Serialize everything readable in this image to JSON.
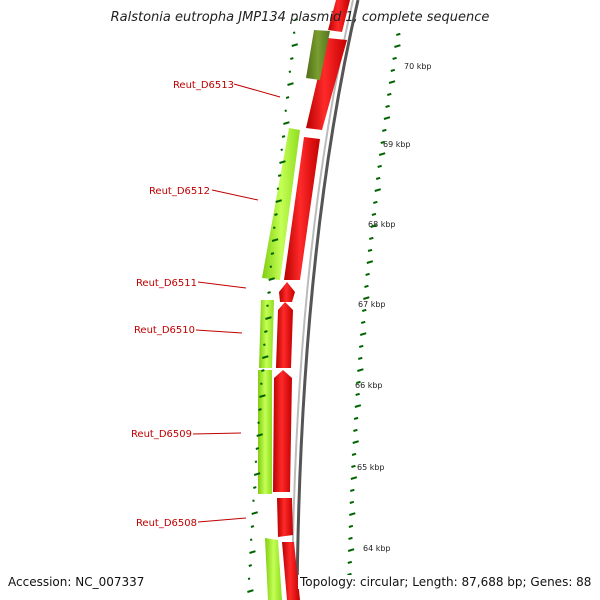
{
  "title": "Ralstonia eutropha JMP134 plasmid 1, complete sequence",
  "accession": "Accession: NC_007337",
  "summary": "Topology: circular; Length: 87,688 bp; Genes: 88",
  "colors": {
    "forward_cds": "#ff0000",
    "reverse_cds": "#aaff33",
    "rna": "#6b8e23",
    "backbone": "#888888",
    "gc_ticks": "#006400",
    "labels": "#c00000"
  },
  "kbp_ticks": [
    {
      "label": "70 kbp"
    },
    {
      "label": "69 kbp"
    },
    {
      "label": "68 kbp"
    },
    {
      "label": "67 kbp"
    },
    {
      "label": "66 kbp"
    },
    {
      "label": "65 kbp"
    },
    {
      "label": "64 kbp"
    }
  ],
  "gene_labels": [
    {
      "label": "Reut_D6513"
    },
    {
      "label": "Reut_D6512"
    },
    {
      "label": "Reut_D6511"
    },
    {
      "label": "Reut_D6510"
    },
    {
      "label": "Reut_D6509"
    },
    {
      "label": "Reut_D6508"
    }
  ]
}
